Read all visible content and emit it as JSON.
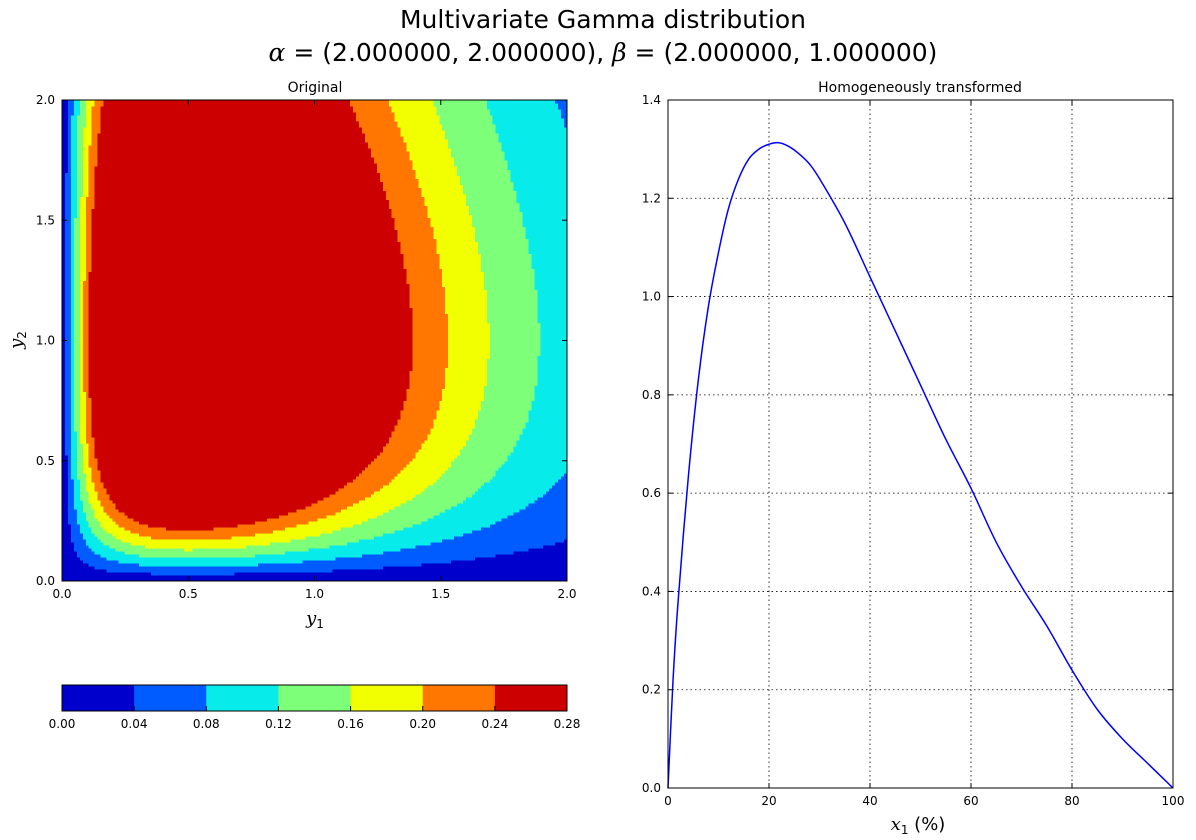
{
  "figure": {
    "title_line1": "Multivariate Gamma distribution",
    "title_alpha_symbol": "α",
    "title_alpha_value": " = (2.000000, 2.000000), ",
    "title_beta_symbol": "β",
    "title_beta_value": " = (2.000000, 1.000000)"
  },
  "chart_data": [
    {
      "type": "contour",
      "title": "Original",
      "xlabel": "y",
      "xlabel_sub": "1",
      "ylabel": "y",
      "ylabel_sub": "2",
      "xlim": [
        0.0,
        2.0
      ],
      "ylim": [
        0.0,
        2.0
      ],
      "x_ticks": [
        "0.0",
        "0.5",
        "1.0",
        "1.5",
        "2.0"
      ],
      "y_ticks": [
        "0.0",
        "0.5",
        "1.0",
        "1.5",
        "2.0"
      ],
      "grid": false,
      "levels": [
        0.0,
        0.04,
        0.08,
        0.12,
        0.16,
        0.2,
        0.24,
        0.28
      ],
      "level_colors": [
        "#0000CC",
        "#005CFF",
        "#07EBEB",
        "#7EFF7A",
        "#F2FF00",
        "#FF7600",
        "#CC0000"
      ],
      "colorbar_ticks": [
        "0.00",
        "0.04",
        "0.08",
        "0.12",
        "0.16",
        "0.20",
        "0.24",
        "0.28"
      ],
      "colorbar_orientation": "horizontal"
    },
    {
      "type": "line",
      "title": "Homogeneously transformed",
      "xlabel": "x",
      "xlabel_sub": "1",
      "xlabel_unit": " (%)",
      "ylabel": "",
      "xlim": [
        0,
        100
      ],
      "ylim": [
        0.0,
        1.4
      ],
      "x_ticks": [
        "0",
        "20",
        "40",
        "60",
        "80",
        "100"
      ],
      "y_ticks": [
        "0.0",
        "0.2",
        "0.4",
        "0.6",
        "0.8",
        "1.0",
        "1.2",
        "1.4"
      ],
      "grid": true,
      "series": [
        {
          "color": "#0000FF",
          "x": [
            0,
            1,
            2,
            4,
            6,
            8,
            10,
            12,
            14,
            16,
            18,
            20,
            22,
            24,
            26,
            28,
            30,
            35,
            40,
            45,
            50,
            55,
            60,
            65,
            70,
            75,
            80,
            85,
            90,
            95,
            100
          ],
          "y": [
            0.0,
            0.22,
            0.38,
            0.63,
            0.83,
            0.98,
            1.09,
            1.18,
            1.24,
            1.28,
            1.3,
            1.31,
            1.313,
            1.305,
            1.29,
            1.27,
            1.24,
            1.15,
            1.04,
            0.93,
            0.82,
            0.71,
            0.61,
            0.5,
            0.41,
            0.33,
            0.24,
            0.16,
            0.1,
            0.05,
            0.0
          ]
        }
      ]
    }
  ]
}
